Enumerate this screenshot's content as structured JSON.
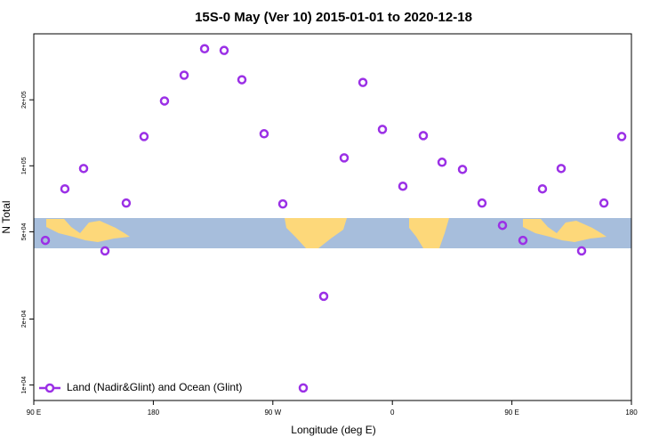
{
  "chart_data": {
    "type": "scatter",
    "title": "15S-0 May (Ver 10)   2015-01-01 to 2020-12-18",
    "x_label": "Longitude (deg E)",
    "y_label": "N Total",
    "y_log": true,
    "x": [
      98.7,
      113.4,
      127.5,
      143.6,
      159.6,
      173.0,
      188.4,
      203.2,
      218.6,
      233.3,
      246.7,
      263.4,
      277.5,
      292.9,
      308.3,
      323.7,
      337.8,
      352.5,
      367.9,
      383.3,
      397.4,
      412.8,
      427.5,
      442.9,
      458.3,
      473.0,
      487.1,
      502.5,
      519.3,
      532.7
    ],
    "series": [
      {
        "name": "Land (Nadir&Glint) and Ocean (Glint)",
        "color": "#9b30e6",
        "values": [
          45700,
          78500,
          97200,
          40900,
          67600,
          136000,
          197600,
          259000,
          342000,
          336000,
          247000,
          140000,
          67000,
          9700,
          25400,
          108700,
          240000,
          146600,
          80700,
          137300,
          103800,
          96300,
          67600,
          53500,
          45700,
          78500,
          97200,
          40900,
          67600,
          136000
        ]
      }
    ],
    "xlim": [
      90,
      540
    ],
    "xticks": [
      {
        "value": 90,
        "label": "90 E"
      },
      180,
      {
        "value": 270,
        "label": "90 W"
      },
      {
        "value": 360,
        "label": "0"
      },
      {
        "value": 450,
        "label": "90 E"
      },
      {
        "value": 540,
        "label": "180"
      }
    ],
    "ylim": [
      8500,
      400000
    ],
    "yticks": [
      {
        "value": 10000,
        "label": "1e+04"
      },
      {
        "value": 20000,
        "label": "2e+04"
      },
      {
        "value": 50000,
        "label": "5e+04"
      },
      {
        "value": 100000,
        "label": "1e+05"
      },
      {
        "value": 200000,
        "label": "2e+05"
      }
    ],
    "legend": "bottom-left"
  }
}
